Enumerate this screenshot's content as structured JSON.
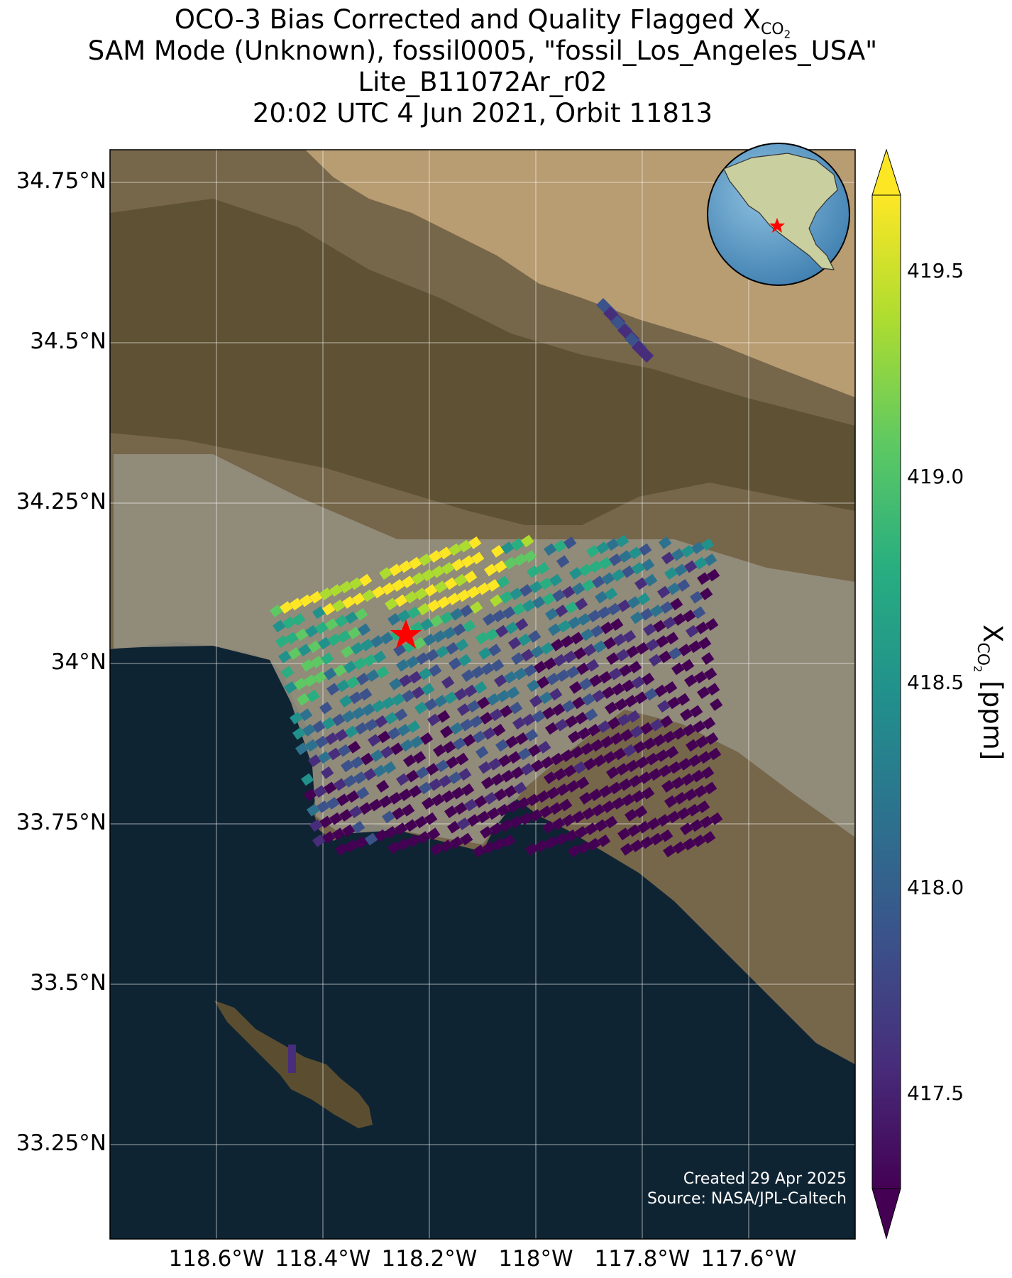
{
  "title": {
    "line1_prefix": "OCO-3 Bias Corrected and Quality Flagged X",
    "line1_sub": "CO",
    "line1_sub2": "2",
    "line2": "SAM Mode (Unknown), fossil0005, \"fossil_Los_Angeles_USA\"",
    "line3": "Lite_B11072Ar_r02",
    "line4": "20:02 UTC 4 Jun 2021, Orbit 11813"
  },
  "map": {
    "lat_ticks": [
      "34.75°N",
      "34.5°N",
      "34.25°N",
      "34°N",
      "33.75°N",
      "33.5°N",
      "33.25°N"
    ],
    "lat_values": [
      34.75,
      34.5,
      34.25,
      34.0,
      33.75,
      33.5,
      33.25
    ],
    "lon_ticks": [
      "118.6°W",
      "118.4°W",
      "118.2°W",
      "118°W",
      "117.8°W",
      "117.6°W"
    ],
    "lon_values": [
      -118.6,
      -118.4,
      -118.2,
      -118.0,
      -117.8,
      -117.6
    ],
    "lat_range": [
      33.1,
      34.8
    ],
    "lon_range": [
      -118.8,
      -117.4
    ],
    "target_marker": {
      "lon": -118.25,
      "lat": 34.06,
      "color": "#ff0000"
    },
    "inset_globe_marker_color": "#ff0000",
    "credit_line1": "Created 29 Apr 2025",
    "credit_line2": "Source: NASA/JPL-Caltech"
  },
  "colorbar": {
    "label_prefix": "X",
    "label_sub": "CO",
    "label_sub2": "2",
    "label_suffix": " [ppm]",
    "ticks": [
      "419.5",
      "419.0",
      "418.5",
      "418.0",
      "417.5"
    ],
    "tick_values": [
      419.5,
      419.0,
      418.5,
      418.0,
      417.5
    ],
    "range": [
      417.2,
      419.7
    ],
    "colormap": "viridis",
    "extend": "both"
  },
  "colors": {
    "ocean": "#0f2433",
    "land": "#7a6a4a",
    "desert": "#b99d74",
    "mountains": "#5d5030",
    "urban": "#9a968a",
    "grid": "#ffffff"
  }
}
